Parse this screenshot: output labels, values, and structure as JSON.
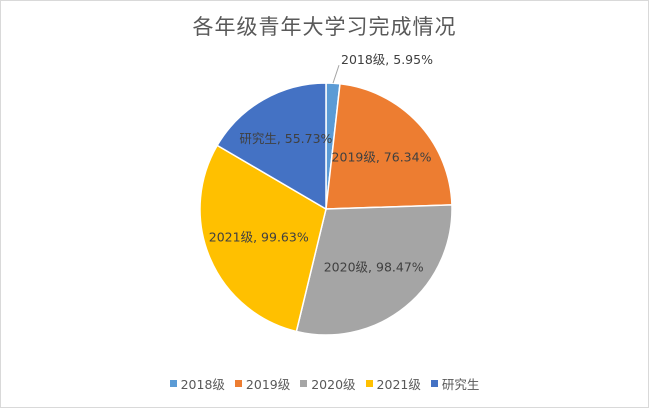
{
  "chart_data": {
    "type": "pie",
    "title": "各年级青年大学习完成情况",
    "categories": [
      "2018级",
      "2019级",
      "2020级",
      "2021级",
      "研究生"
    ],
    "values": [
      5.95,
      76.34,
      98.47,
      99.63,
      55.73
    ],
    "data_labels": [
      "2018级, 5.95%",
      "2019级, 76.34%",
      "2020级, 98.47%",
      "2021级, 99.63%",
      "研究生, 55.73%"
    ],
    "colors": [
      "#5b9bd5",
      "#ed7d31",
      "#a5a5a5",
      "#ffc000",
      "#4472c4"
    ],
    "legend_position": "bottom"
  }
}
